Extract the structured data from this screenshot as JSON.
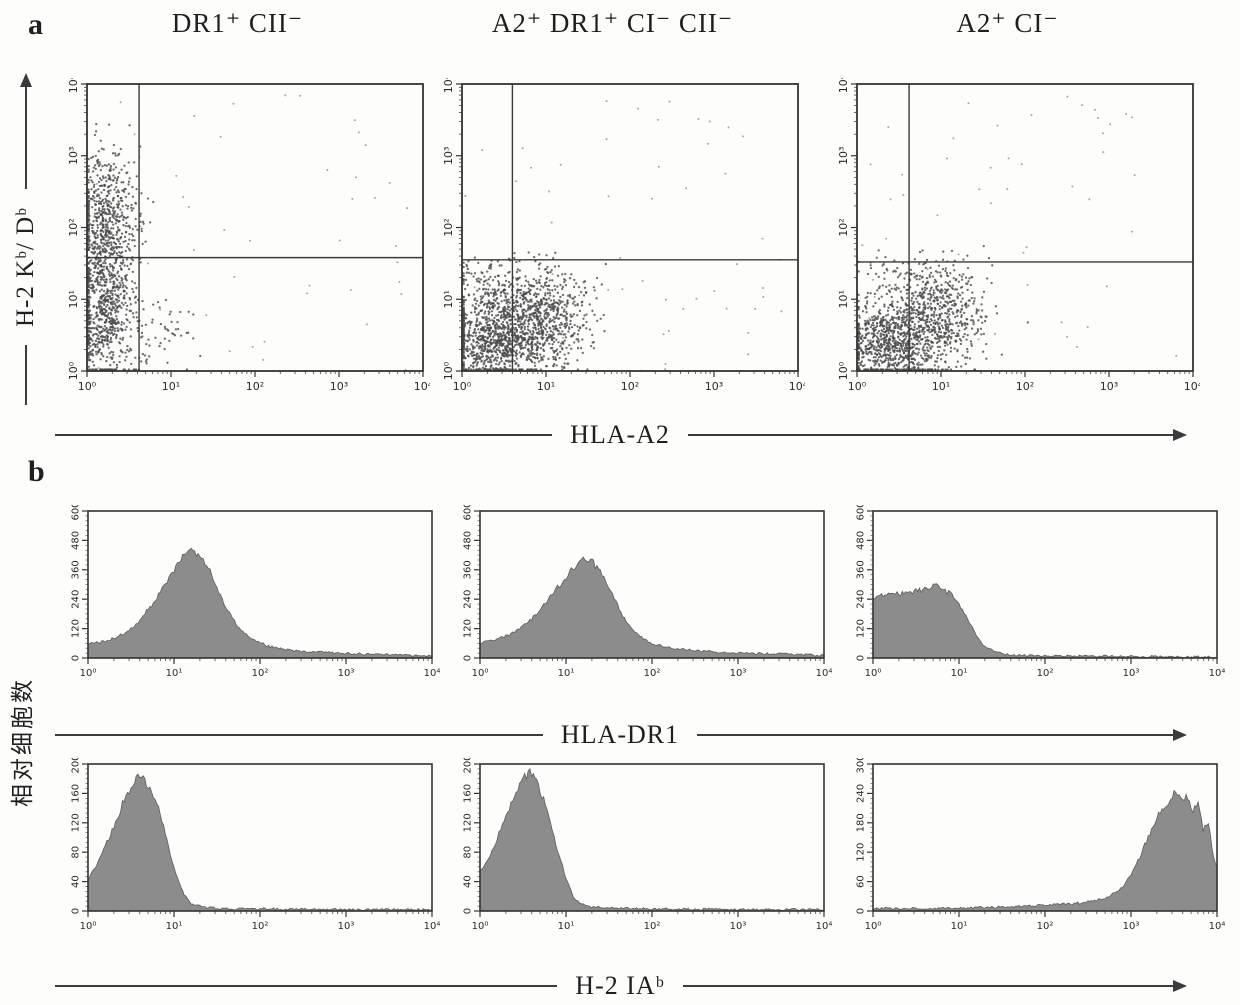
{
  "labels": {
    "panel_a": "a",
    "panel_b": "b",
    "ylabel_a": "H-2 Kᵇ/ Dᵇ",
    "xarrow_a": "HLA-A2",
    "ylabel_b": "相对细胞数",
    "xarrow_b1": "HLA-DR1",
    "xarrow_b2": "H-2 IAᵇ"
  },
  "chart_data": [
    {
      "type": "scatter",
      "title": "DR1⁺ CII⁻",
      "xlabel": "HLA-A2",
      "ylabel": "H-2 Kᵇ/Dᵇ",
      "scale": "log",
      "xlim": [
        1,
        10000
      ],
      "ylim": [
        1,
        10000
      ],
      "x_ticks": [
        "10⁰",
        "10¹",
        "10²",
        "10³",
        "10⁴"
      ],
      "y_ticks": [
        "10⁰",
        "10¹",
        "10²",
        "10³",
        "10⁴"
      ],
      "gates": {
        "x_decade": 0.62,
        "y_decade": 1.58
      },
      "clusters": [
        {
          "cx": 0.22,
          "cy": 0.9,
          "sx": 0.17,
          "sy": 0.55,
          "n": 700
        },
        {
          "cx": 0.25,
          "cy": 2.1,
          "sx": 0.18,
          "sy": 0.5,
          "n": 550
        },
        {
          "cx": 0.8,
          "cy": 0.5,
          "sx": 0.35,
          "sy": 0.3,
          "n": 70
        }
      ],
      "noise_points": 45
    },
    {
      "type": "scatter",
      "title": "A2⁺ DR1⁺ CI⁻ CII⁻",
      "xlabel": "HLA-A2",
      "ylabel": "H-2 Kᵇ/Dᵇ",
      "scale": "log",
      "xlim": [
        1,
        10000
      ],
      "ylim": [
        1,
        10000
      ],
      "x_ticks": [
        "10⁰",
        "10¹",
        "10²",
        "10³",
        "10⁴"
      ],
      "y_ticks": [
        "10⁰",
        "10¹",
        "10²",
        "10³",
        "10⁴"
      ],
      "gates": {
        "x_decade": 0.6,
        "y_decade": 1.55
      },
      "clusters": [
        {
          "cx": 0.45,
          "cy": 0.45,
          "sx": 0.32,
          "sy": 0.3,
          "n": 1000
        },
        {
          "cx": 1.0,
          "cy": 0.8,
          "sx": 0.3,
          "sy": 0.32,
          "n": 550
        },
        {
          "cx": 0.35,
          "cy": 1.2,
          "sx": 0.28,
          "sy": 0.22,
          "n": 130
        }
      ],
      "noise_points": 55
    },
    {
      "type": "scatter",
      "title": "A2⁺ CI⁻",
      "xlabel": "HLA-A2",
      "ylabel": "H-2 Kᵇ/Dᵇ",
      "scale": "log",
      "xlim": [
        1,
        10000
      ],
      "ylim": [
        1,
        10000
      ],
      "x_ticks": [
        "10⁰",
        "10¹",
        "10²",
        "10³",
        "10⁴"
      ],
      "y_ticks": [
        "10⁰",
        "10¹",
        "10²",
        "10³",
        "10⁴"
      ],
      "gates": {
        "x_decade": 0.62,
        "y_decade": 1.52
      },
      "clusters": [
        {
          "cx": 0.45,
          "cy": 0.4,
          "sx": 0.3,
          "sy": 0.28,
          "n": 850
        },
        {
          "cx": 1.0,
          "cy": 0.75,
          "sx": 0.28,
          "sy": 0.32,
          "n": 500
        },
        {
          "cx": 0.7,
          "cy": 1.35,
          "sx": 0.4,
          "sy": 0.15,
          "n": 90
        }
      ],
      "noise_points": 55
    },
    {
      "type": "histogram",
      "xlabel": "HLA-DR1",
      "ylabel": "相对细胞数",
      "scale": "log-x",
      "xlim": [
        1,
        10000
      ],
      "ylim": [
        0,
        600
      ],
      "x_ticks": [
        "10⁰",
        "10¹",
        "10²",
        "10³",
        "10⁴"
      ],
      "y_ticks": [
        0,
        120,
        240,
        360,
        480,
        600
      ],
      "fill": "#8c8c8c",
      "profile": [
        [
          0,
          55
        ],
        [
          0.2,
          68
        ],
        [
          0.4,
          95
        ],
        [
          0.6,
          150
        ],
        [
          0.8,
          245
        ],
        [
          0.95,
          330
        ],
        [
          1.1,
          415
        ],
        [
          1.2,
          440
        ],
        [
          1.3,
          420
        ],
        [
          1.45,
          330
        ],
        [
          1.6,
          205
        ],
        [
          1.75,
          125
        ],
        [
          1.9,
          78
        ],
        [
          2.1,
          48
        ],
        [
          2.4,
          30
        ],
        [
          2.8,
          22
        ],
        [
          3.2,
          16
        ],
        [
          3.6,
          12
        ],
        [
          4,
          9
        ]
      ]
    },
    {
      "type": "histogram",
      "xlabel": "HLA-DR1",
      "ylabel": "相对细胞数",
      "scale": "log-x",
      "xlim": [
        1,
        10000
      ],
      "ylim": [
        0,
        600
      ],
      "x_ticks": [
        "10⁰",
        "10¹",
        "10²",
        "10³",
        "10⁴"
      ],
      "y_ticks": [
        0,
        120,
        240,
        360,
        480,
        600
      ],
      "fill": "#8c8c8c",
      "profile": [
        [
          0,
          62
        ],
        [
          0.2,
          75
        ],
        [
          0.4,
          105
        ],
        [
          0.6,
          160
        ],
        [
          0.8,
          240
        ],
        [
          1.0,
          330
        ],
        [
          1.15,
          390
        ],
        [
          1.28,
          405
        ],
        [
          1.4,
          350
        ],
        [
          1.55,
          245
        ],
        [
          1.7,
          150
        ],
        [
          1.85,
          90
        ],
        [
          2.0,
          58
        ],
        [
          2.3,
          36
        ],
        [
          2.7,
          26
        ],
        [
          3.1,
          20
        ],
        [
          3.5,
          16
        ],
        [
          4,
          11
        ]
      ]
    },
    {
      "type": "histogram",
      "xlabel": "HLA-DR1",
      "ylabel": "相对细胞数",
      "scale": "log-x",
      "xlim": [
        1,
        10000
      ],
      "ylim": [
        0,
        600
      ],
      "x_ticks": [
        "10⁰",
        "10¹",
        "10²",
        "10³",
        "10⁴"
      ],
      "y_ticks": [
        0,
        120,
        240,
        360,
        480,
        600
      ],
      "fill": "#8c8c8c",
      "profile": [
        [
          0,
          245
        ],
        [
          0.15,
          255
        ],
        [
          0.3,
          262
        ],
        [
          0.45,
          272
        ],
        [
          0.6,
          280
        ],
        [
          0.72,
          298
        ],
        [
          0.8,
          288
        ],
        [
          0.9,
          262
        ],
        [
          1.0,
          220
        ],
        [
          1.1,
          158
        ],
        [
          1.2,
          95
        ],
        [
          1.3,
          48
        ],
        [
          1.45,
          22
        ],
        [
          1.6,
          12
        ],
        [
          1.9,
          9
        ],
        [
          2.4,
          8
        ],
        [
          3,
          7
        ],
        [
          3.5,
          5
        ],
        [
          4,
          4
        ]
      ]
    },
    {
      "type": "histogram",
      "xlabel": "H-2 IAᵇ",
      "ylabel": "相对细胞数",
      "scale": "log-x",
      "xlim": [
        1,
        10000
      ],
      "ylim": [
        0,
        200
      ],
      "x_ticks": [
        "10⁰",
        "10¹",
        "10²",
        "10³",
        "10⁴"
      ],
      "y_ticks": [
        0,
        40,
        80,
        120,
        160,
        200
      ],
      "fill": "#8c8c8c",
      "profile": [
        [
          0,
          42
        ],
        [
          0.1,
          62
        ],
        [
          0.2,
          88
        ],
        [
          0.3,
          115
        ],
        [
          0.4,
          145
        ],
        [
          0.5,
          168
        ],
        [
          0.58,
          182
        ],
        [
          0.65,
          178
        ],
        [
          0.72,
          168
        ],
        [
          0.8,
          148
        ],
        [
          0.88,
          115
        ],
        [
          0.95,
          80
        ],
        [
          1.02,
          52
        ],
        [
          1.1,
          26
        ],
        [
          1.2,
          10
        ],
        [
          1.35,
          5
        ],
        [
          1.6,
          3
        ],
        [
          2,
          3
        ],
        [
          3,
          2
        ],
        [
          4,
          2
        ]
      ]
    },
    {
      "type": "histogram",
      "xlabel": "H-2 IAᵇ",
      "ylabel": "相对细胞数",
      "scale": "log-x",
      "xlim": [
        1,
        10000
      ],
      "ylim": [
        0,
        200
      ],
      "x_ticks": [
        "10⁰",
        "10¹",
        "10²",
        "10³",
        "10⁴"
      ],
      "y_ticks": [
        0,
        40,
        80,
        120,
        160,
        200
      ],
      "fill": "#8c8c8c",
      "profile": [
        [
          0,
          55
        ],
        [
          0.1,
          72
        ],
        [
          0.2,
          98
        ],
        [
          0.3,
          128
        ],
        [
          0.4,
          158
        ],
        [
          0.5,
          180
        ],
        [
          0.58,
          188
        ],
        [
          0.66,
          175
        ],
        [
          0.74,
          152
        ],
        [
          0.82,
          120
        ],
        [
          0.9,
          82
        ],
        [
          1.0,
          45
        ],
        [
          1.1,
          16
        ],
        [
          1.25,
          6
        ],
        [
          1.5,
          4
        ],
        [
          2,
          3
        ],
        [
          3,
          2
        ],
        [
          4,
          2
        ]
      ]
    },
    {
      "type": "histogram",
      "xlabel": "H-2 IAᵇ",
      "ylabel": "相对细胞数",
      "scale": "log-x",
      "xlim": [
        1,
        10000
      ],
      "ylim": [
        0,
        300
      ],
      "x_ticks": [
        "10⁰",
        "10¹",
        "10²",
        "10³",
        "10⁴"
      ],
      "y_ticks": [
        0,
        60,
        120,
        180,
        240,
        300
      ],
      "fill": "#8c8c8c",
      "profile": [
        [
          0,
          5
        ],
        [
          0.5,
          5
        ],
        [
          1,
          6
        ],
        [
          1.5,
          8
        ],
        [
          2,
          12
        ],
        [
          2.4,
          16
        ],
        [
          2.7,
          26
        ],
        [
          2.9,
          48
        ],
        [
          3.05,
          90
        ],
        [
          3.2,
          150
        ],
        [
          3.35,
          205
        ],
        [
          3.5,
          238
        ],
        [
          3.58,
          228
        ],
        [
          3.65,
          235
        ],
        [
          3.72,
          205
        ],
        [
          3.78,
          225
        ],
        [
          3.84,
          160
        ],
        [
          3.9,
          185
        ],
        [
          3.95,
          120
        ],
        [
          4,
          85
        ]
      ]
    }
  ]
}
